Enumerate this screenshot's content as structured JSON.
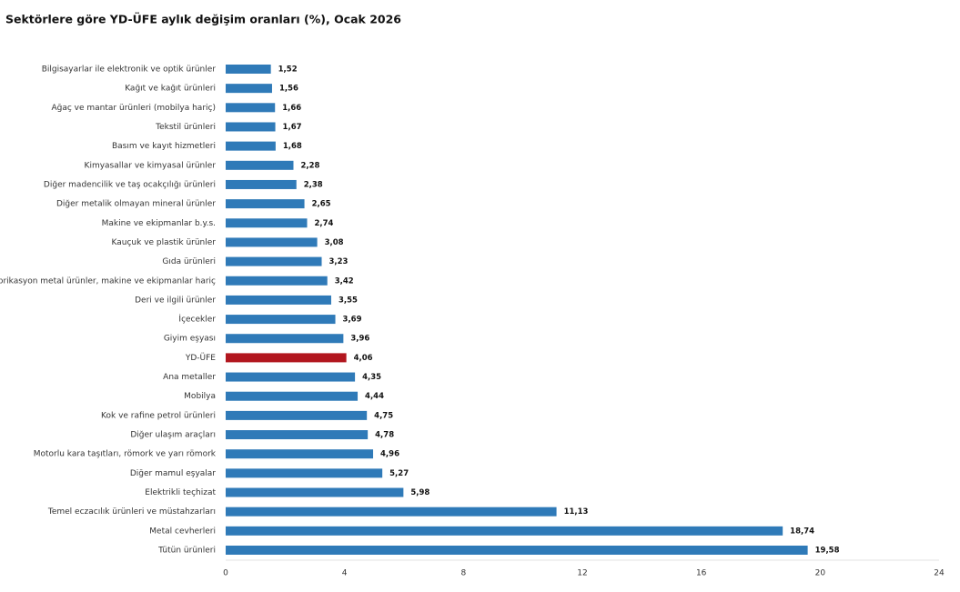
{
  "chart_data": {
    "type": "barh",
    "title": "Sektörlere göre YD-ÜFE aylık değişim oranları (%), Ocak 2026",
    "categories": [
      "Bilgisayarlar ile elektronik ve optik ürünler",
      "Kağıt ve kağıt ürünleri",
      "Ağaç ve mantar ürünleri (mobilya hariç)",
      "Tekstil ürünleri",
      "Basım ve kayıt hizmetleri",
      "Kimyasallar ve kimyasal ürünler",
      "Diğer madencilik ve taş ocakçılığı ürünleri",
      "Diğer metalik olmayan mineral ürünler",
      "Makine ve ekipmanlar b.y.s.",
      "Kauçuk ve plastik ürünler",
      "Gıda ürünleri",
      "Fabrikasyon metal ürünler, makine ve ekipmanlar hariç",
      "Deri ve ilgili ürünler",
      "İçecekler",
      "Giyim eşyası",
      "YD-ÜFE",
      "Ana metaller",
      "Mobilya",
      "Kok ve rafine petrol ürünleri",
      "Diğer ulaşım araçları",
      "Motorlu kara taşıtları, römork ve yarı römork",
      "Diğer mamul eşyalar",
      "Elektrikli teçhizat",
      "Temel eczacılık ürünleri ve müstahzarları",
      "Metal cevherleri",
      "Tütün ürünleri"
    ],
    "values": [
      1.52,
      1.56,
      1.66,
      1.67,
      1.68,
      2.28,
      2.38,
      2.65,
      2.74,
      3.08,
      3.23,
      3.42,
      3.55,
      3.69,
      3.96,
      4.06,
      4.35,
      4.44,
      4.75,
      4.78,
      4.96,
      5.27,
      5.98,
      11.13,
      18.74,
      19.58
    ],
    "value_labels": [
      "1,52",
      "1,56",
      "1,66",
      "1,67",
      "1,68",
      "2,28",
      "2,38",
      "2,65",
      "2,74",
      "3,08",
      "3,23",
      "3,42",
      "3,55",
      "3,69",
      "3,96",
      "4,06",
      "4,35",
      "4,44",
      "4,75",
      "4,78",
      "4,96",
      "5,27",
      "5,98",
      "11,13",
      "18,74",
      "19,58"
    ],
    "colors": [
      "#2f7ab8",
      "#2f7ab8",
      "#2f7ab8",
      "#2f7ab8",
      "#2f7ab8",
      "#2f7ab8",
      "#2f7ab8",
      "#2f7ab8",
      "#2f7ab8",
      "#2f7ab8",
      "#2f7ab8",
      "#2f7ab8",
      "#2f7ab8",
      "#2f7ab8",
      "#2f7ab8",
      "#b2161e",
      "#2f7ab8",
      "#2f7ab8",
      "#2f7ab8",
      "#2f7ab8",
      "#2f7ab8",
      "#2f7ab8",
      "#2f7ab8",
      "#2f7ab8",
      "#2f7ab8",
      "#2f7ab8"
    ],
    "xlim": [
      0,
      24
    ],
    "xticks": [
      0,
      4,
      8,
      12,
      16,
      20,
      24
    ]
  }
}
